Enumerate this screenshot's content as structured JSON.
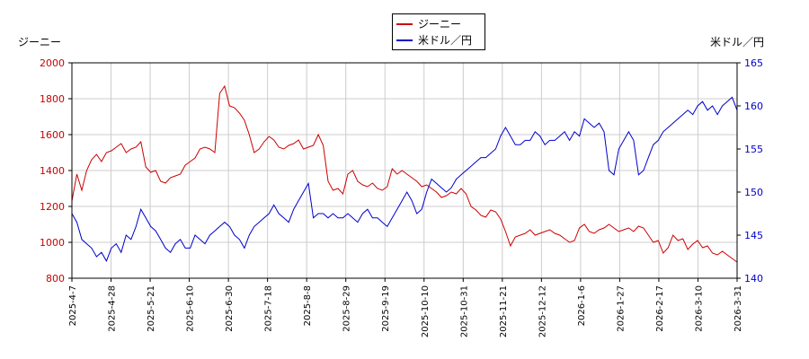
{
  "chart_data": {
    "type": "line",
    "left_axis_title": "ジーニー",
    "right_axis_title": "米ドル／円",
    "x_tick_labels": [
      "2025-4-7",
      "2025-4-28",
      "2025-5-21",
      "2025-6-10",
      "2025-6-30",
      "2025-7-18",
      "2025-8-8",
      "2025-8-29",
      "2025-9-19",
      "2025-10-10",
      "2025-10-31",
      "2025-11-21",
      "2025-12-12",
      "2026-1-6",
      "2026-1-27",
      "2026-2-17",
      "2026-3-10",
      "2026-3-31"
    ],
    "y_left_range": [
      800,
      2000
    ],
    "y_left_ticks": [
      "800",
      "1000",
      "1200",
      "1400",
      "1600",
      "1800",
      "2000"
    ],
    "y_right_range": [
      140,
      165
    ],
    "y_right_ticks": [
      "140",
      "145",
      "150",
      "155",
      "160",
      "165"
    ],
    "grid": true,
    "legend_position": "top-center",
    "series": [
      {
        "name": "ジーニー",
        "color": "#cc0000",
        "axis": "left",
        "values": [
          [
            0,
            1230
          ],
          [
            1,
            1380
          ],
          [
            2,
            1290
          ],
          [
            3,
            1400
          ],
          [
            4,
            1460
          ],
          [
            5,
            1490
          ],
          [
            6,
            1450
          ],
          [
            7,
            1500
          ],
          [
            8,
            1510
          ],
          [
            9,
            1530
          ],
          [
            10,
            1550
          ],
          [
            11,
            1500
          ],
          [
            12,
            1520
          ],
          [
            13,
            1530
          ],
          [
            14,
            1560
          ],
          [
            15,
            1420
          ],
          [
            16,
            1390
          ],
          [
            17,
            1400
          ],
          [
            18,
            1340
          ],
          [
            19,
            1330
          ],
          [
            20,
            1360
          ],
          [
            21,
            1370
          ],
          [
            22,
            1380
          ],
          [
            23,
            1430
          ],
          [
            24,
            1450
          ],
          [
            25,
            1470
          ],
          [
            26,
            1520
          ],
          [
            27,
            1530
          ],
          [
            28,
            1520
          ],
          [
            29,
            1500
          ],
          [
            30,
            1830
          ],
          [
            31,
            1870
          ],
          [
            32,
            1760
          ],
          [
            33,
            1750
          ],
          [
            34,
            1720
          ],
          [
            35,
            1680
          ],
          [
            36,
            1600
          ],
          [
            37,
            1500
          ],
          [
            38,
            1520
          ],
          [
            39,
            1560
          ],
          [
            40,
            1590
          ],
          [
            41,
            1570
          ],
          [
            42,
            1530
          ],
          [
            43,
            1520
          ],
          [
            44,
            1540
          ],
          [
            45,
            1550
          ],
          [
            46,
            1570
          ],
          [
            47,
            1520
          ],
          [
            48,
            1530
          ],
          [
            49,
            1540
          ],
          [
            50,
            1600
          ],
          [
            51,
            1540
          ],
          [
            52,
            1340
          ],
          [
            53,
            1290
          ],
          [
            54,
            1300
          ],
          [
            55,
            1270
          ],
          [
            56,
            1380
          ],
          [
            57,
            1400
          ],
          [
            58,
            1340
          ],
          [
            59,
            1320
          ],
          [
            60,
            1310
          ],
          [
            61,
            1330
          ],
          [
            62,
            1300
          ],
          [
            63,
            1290
          ],
          [
            64,
            1310
          ],
          [
            65,
            1410
          ],
          [
            66,
            1380
          ],
          [
            67,
            1400
          ],
          [
            68,
            1380
          ],
          [
            69,
            1360
          ],
          [
            70,
            1340
          ],
          [
            71,
            1310
          ],
          [
            72,
            1320
          ],
          [
            73,
            1300
          ],
          [
            74,
            1280
          ],
          [
            75,
            1250
          ],
          [
            76,
            1260
          ],
          [
            77,
            1280
          ],
          [
            78,
            1270
          ],
          [
            79,
            1300
          ],
          [
            80,
            1270
          ],
          [
            81,
            1200
          ],
          [
            82,
            1180
          ],
          [
            83,
            1150
          ],
          [
            84,
            1140
          ],
          [
            85,
            1180
          ],
          [
            86,
            1170
          ],
          [
            87,
            1130
          ],
          [
            88,
            1060
          ],
          [
            89,
            980
          ],
          [
            90,
            1030
          ],
          [
            91,
            1040
          ],
          [
            92,
            1050
          ],
          [
            93,
            1070
          ],
          [
            94,
            1040
          ],
          [
            95,
            1050
          ],
          [
            96,
            1060
          ],
          [
            97,
            1070
          ],
          [
            98,
            1050
          ],
          [
            99,
            1040
          ],
          [
            100,
            1020
          ],
          [
            101,
            1000
          ],
          [
            102,
            1010
          ],
          [
            103,
            1080
          ],
          [
            104,
            1100
          ],
          [
            105,
            1060
          ],
          [
            106,
            1050
          ],
          [
            107,
            1070
          ],
          [
            108,
            1080
          ],
          [
            109,
            1100
          ],
          [
            110,
            1080
          ],
          [
            111,
            1060
          ],
          [
            112,
            1070
          ],
          [
            113,
            1080
          ],
          [
            114,
            1060
          ],
          [
            115,
            1090
          ],
          [
            116,
            1080
          ],
          [
            117,
            1040
          ],
          [
            118,
            1000
          ],
          [
            119,
            1010
          ],
          [
            120,
            940
          ],
          [
            121,
            970
          ],
          [
            122,
            1040
          ],
          [
            123,
            1010
          ],
          [
            124,
            1020
          ],
          [
            125,
            960
          ],
          [
            126,
            990
          ],
          [
            127,
            1010
          ],
          [
            128,
            970
          ],
          [
            129,
            980
          ],
          [
            130,
            940
          ],
          [
            131,
            930
          ],
          [
            132,
            950
          ],
          [
            133,
            930
          ],
          [
            134,
            910
          ],
          [
            135,
            890
          ]
        ]
      },
      {
        "name": "米ドル／円",
        "color": "#0000cc",
        "axis": "right",
        "values": [
          [
            0,
            147.5
          ],
          [
            1,
            146.5
          ],
          [
            2,
            144.5
          ],
          [
            3,
            144
          ],
          [
            4,
            143.5
          ],
          [
            5,
            142.5
          ],
          [
            6,
            143
          ],
          [
            7,
            142
          ],
          [
            8,
            143.5
          ],
          [
            9,
            144
          ],
          [
            10,
            143
          ],
          [
            11,
            145
          ],
          [
            12,
            144.5
          ],
          [
            13,
            146
          ],
          [
            14,
            148
          ],
          [
            15,
            147
          ],
          [
            16,
            146
          ],
          [
            17,
            145.5
          ],
          [
            18,
            144.5
          ],
          [
            19,
            143.5
          ],
          [
            20,
            143
          ],
          [
            21,
            144
          ],
          [
            22,
            144.5
          ],
          [
            23,
            143.5
          ],
          [
            24,
            143.5
          ],
          [
            25,
            145
          ],
          [
            26,
            144.5
          ],
          [
            27,
            144
          ],
          [
            28,
            145
          ],
          [
            29,
            145.5
          ],
          [
            30,
            146
          ],
          [
            31,
            146.5
          ],
          [
            32,
            146
          ],
          [
            33,
            145
          ],
          [
            34,
            144.5
          ],
          [
            35,
            143.5
          ],
          [
            36,
            145
          ],
          [
            37,
            146
          ],
          [
            38,
            146.5
          ],
          [
            39,
            147
          ],
          [
            40,
            147.5
          ],
          [
            41,
            148.5
          ],
          [
            42,
            147.5
          ],
          [
            43,
            147
          ],
          [
            44,
            146.5
          ],
          [
            45,
            148
          ],
          [
            46,
            149
          ],
          [
            47,
            150
          ],
          [
            48,
            151
          ],
          [
            49,
            147
          ],
          [
            50,
            147.5
          ],
          [
            51,
            147.5
          ],
          [
            52,
            147
          ],
          [
            53,
            147.5
          ],
          [
            54,
            147
          ],
          [
            55,
            147
          ],
          [
            56,
            147.5
          ],
          [
            57,
            147
          ],
          [
            58,
            146.5
          ],
          [
            59,
            147.5
          ],
          [
            60,
            148
          ],
          [
            61,
            147
          ],
          [
            62,
            147
          ],
          [
            63,
            146.5
          ],
          [
            64,
            146
          ],
          [
            65,
            147
          ],
          [
            66,
            148
          ],
          [
            67,
            149
          ],
          [
            68,
            150
          ],
          [
            69,
            149
          ],
          [
            70,
            147.5
          ],
          [
            71,
            148
          ],
          [
            72,
            150
          ],
          [
            73,
            151.5
          ],
          [
            74,
            151
          ],
          [
            75,
            150.5
          ],
          [
            76,
            150
          ],
          [
            77,
            150.5
          ],
          [
            78,
            151.5
          ],
          [
            79,
            152
          ],
          [
            80,
            152.5
          ],
          [
            81,
            153
          ],
          [
            82,
            153.5
          ],
          [
            83,
            154
          ],
          [
            84,
            154
          ],
          [
            85,
            154.5
          ],
          [
            86,
            155
          ],
          [
            87,
            156.5
          ],
          [
            88,
            157.5
          ],
          [
            89,
            156.5
          ],
          [
            90,
            155.5
          ],
          [
            91,
            155.5
          ],
          [
            92,
            156
          ],
          [
            93,
            156
          ],
          [
            94,
            157
          ],
          [
            95,
            156.5
          ],
          [
            96,
            155.5
          ],
          [
            97,
            156
          ],
          [
            98,
            156
          ],
          [
            99,
            156.5
          ],
          [
            100,
            157
          ],
          [
            101,
            156
          ],
          [
            102,
            157
          ],
          [
            103,
            156.5
          ],
          [
            104,
            158.5
          ],
          [
            105,
            158
          ],
          [
            106,
            157.5
          ],
          [
            107,
            158
          ],
          [
            108,
            157
          ],
          [
            109,
            152.5
          ],
          [
            110,
            152
          ],
          [
            111,
            155
          ],
          [
            112,
            156
          ],
          [
            113,
            157
          ],
          [
            114,
            156
          ],
          [
            115,
            152
          ],
          [
            116,
            152.5
          ],
          [
            117,
            154
          ],
          [
            118,
            155.5
          ],
          [
            119,
            156
          ],
          [
            120,
            157
          ],
          [
            121,
            157.5
          ],
          [
            122,
            158
          ],
          [
            123,
            158.5
          ],
          [
            124,
            159
          ],
          [
            125,
            159.5
          ],
          [
            126,
            159
          ],
          [
            127,
            160
          ],
          [
            128,
            160.5
          ],
          [
            129,
            159.5
          ],
          [
            130,
            160
          ],
          [
            131,
            159
          ],
          [
            132,
            160
          ],
          [
            133,
            160.5
          ],
          [
            134,
            161
          ],
          [
            135,
            159.5
          ]
        ]
      }
    ]
  }
}
